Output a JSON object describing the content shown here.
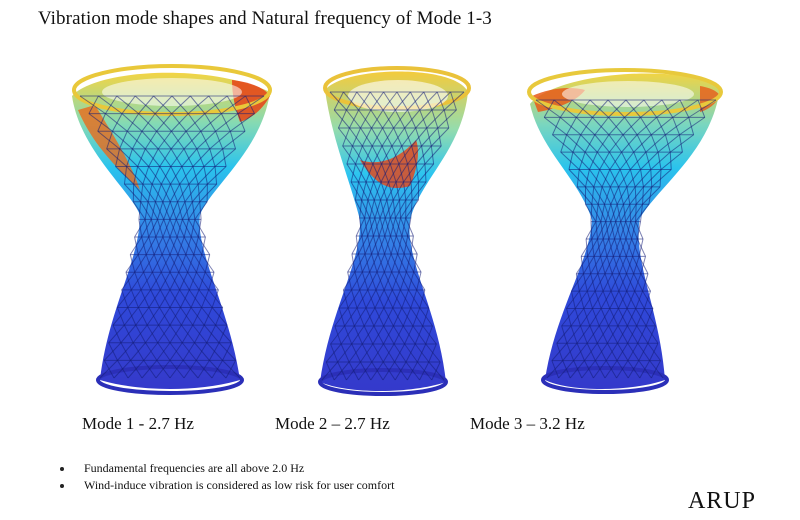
{
  "title": "Vibration mode shapes and Natural frequency of Mode 1-3",
  "modes": [
    {
      "label": "Mode 1 - 2.7 Hz"
    },
    {
      "label": "Mode 2 – 2.7 Hz"
    },
    {
      "label": "Mode 3 – 3.2 Hz"
    }
  ],
  "notes": [
    "Fundamental frequencies are all above 2.0 Hz",
    "Wind-induce vibration is considered as low risk for user comfort"
  ],
  "logo": "ARUP",
  "colors": {
    "low": "#1f2fd6",
    "mid_low": "#19b9e6",
    "mid": "#f0e030",
    "high": "#e85a18"
  }
}
